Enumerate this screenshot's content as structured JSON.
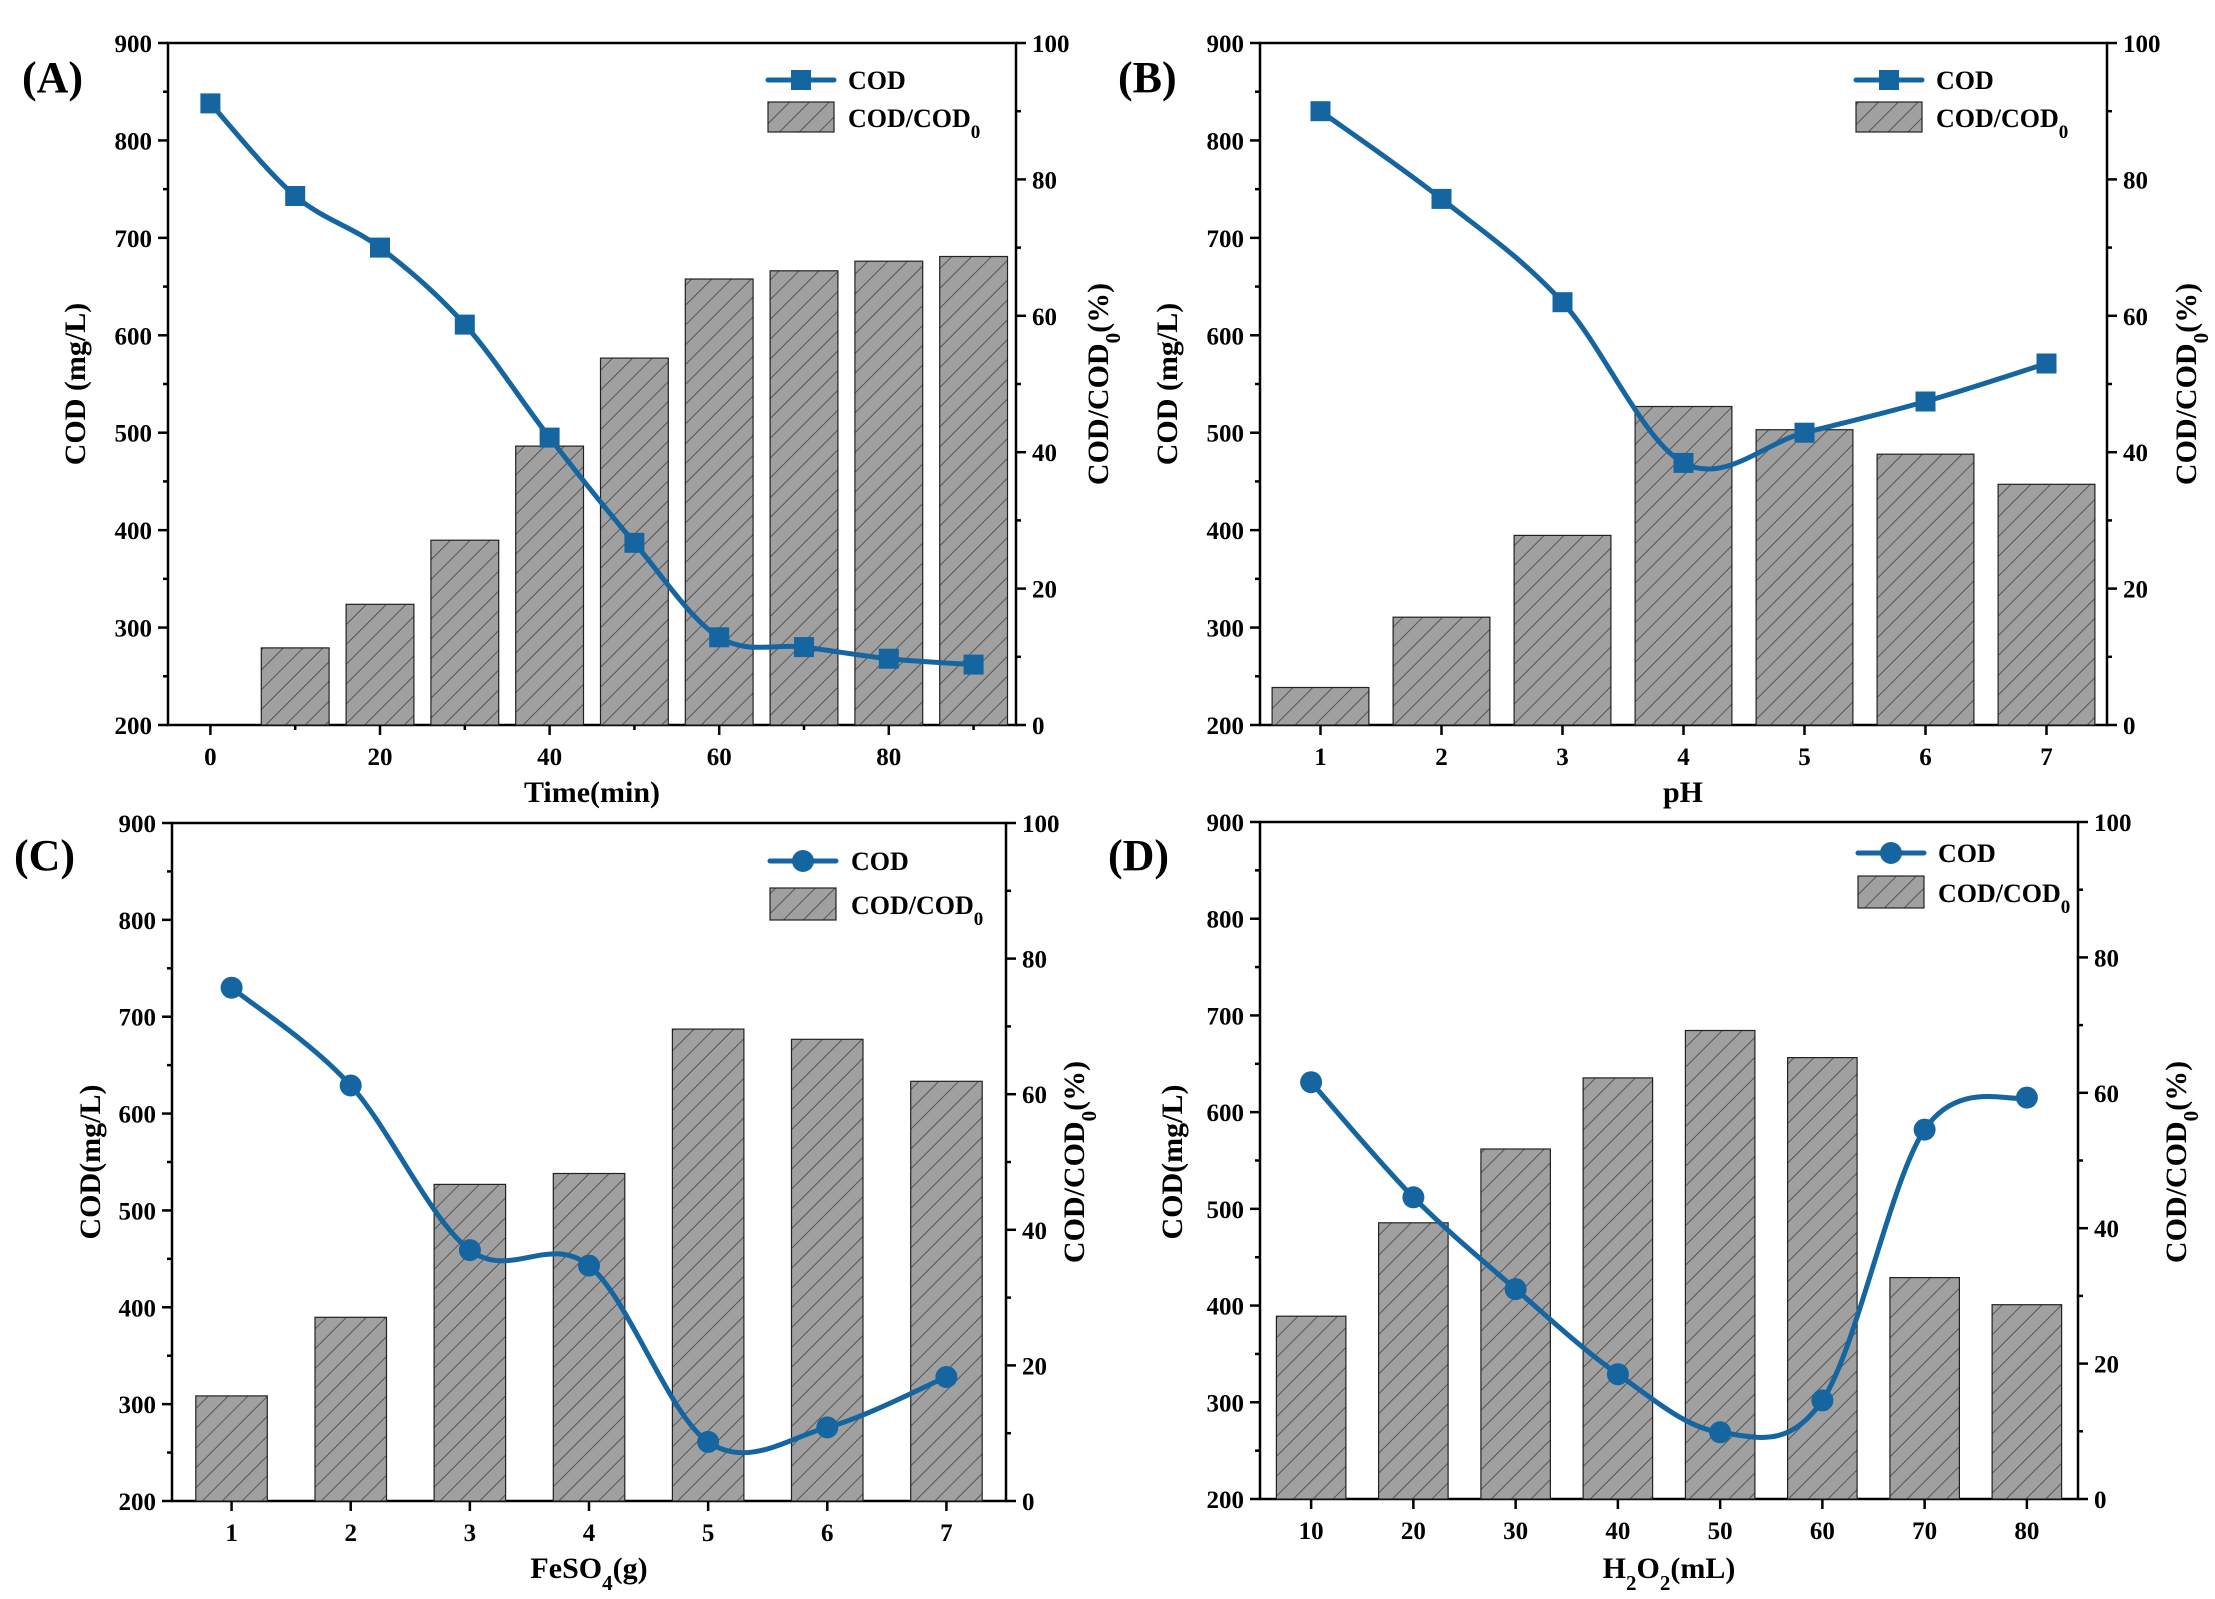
{
  "figure": {
    "colors": {
      "line": "#1565a0",
      "bar_fill": "#a0a0a0",
      "bar_hatch": "#555555"
    }
  },
  "chart_data": [
    {
      "panel": "(A)",
      "type": "bar+line",
      "xlabel": "Time(min)",
      "ylabel_left": "COD (mg/L)",
      "ylabel_right": "COD/COD0(%)",
      "ylim_left": [
        200,
        900
      ],
      "ylim_right": [
        0,
        100
      ],
      "yticks_left": [
        200,
        300,
        400,
        500,
        600,
        700,
        800,
        900
      ],
      "yticks_right": [
        0,
        20,
        40,
        60,
        80,
        100
      ],
      "x_domain": [
        -5,
        95
      ],
      "marker": "square",
      "legend": [
        "COD",
        "COD/COD0"
      ],
      "categories": [
        0,
        10,
        20,
        30,
        40,
        50,
        60,
        70,
        80,
        90
      ],
      "tick_labels": [
        "0",
        "20",
        "40",
        "60",
        "80"
      ],
      "tick_positions": [
        0,
        20,
        40,
        60,
        80
      ],
      "series": [
        {
          "name": "COD",
          "kind": "line",
          "axis": "left",
          "values": [
            838,
            743,
            690,
            611,
            495,
            387,
            290,
            280,
            268,
            262
          ]
        },
        {
          "name": "COD/COD0",
          "kind": "bar",
          "axis": "right",
          "values": [
            0,
            11.3,
            17.7,
            27.1,
            40.9,
            53.8,
            65.4,
            66.6,
            68.0,
            68.7
          ]
        }
      ]
    },
    {
      "panel": "(B)",
      "type": "bar+line",
      "xlabel": "pH",
      "ylabel_left": "COD (mg/L)",
      "ylabel_right": "COD/COD0(%)",
      "ylim_left": [
        200,
        900
      ],
      "ylim_right": [
        0,
        100
      ],
      "yticks_left": [
        200,
        300,
        400,
        500,
        600,
        700,
        800,
        900
      ],
      "yticks_right": [
        0,
        20,
        40,
        60,
        80,
        100
      ],
      "x_domain": [
        0.5,
        7.5
      ],
      "marker": "square",
      "legend": [
        "COD",
        "COD/COD0"
      ],
      "categories": [
        1,
        2,
        3,
        4,
        5,
        6,
        7
      ],
      "tick_labels": [
        "1",
        "2",
        "3",
        "4",
        "5",
        "6",
        "7"
      ],
      "tick_positions": [
        1,
        2,
        3,
        4,
        5,
        6,
        7
      ],
      "series": [
        {
          "name": "COD",
          "kind": "line",
          "axis": "left",
          "values": [
            830,
            740,
            634,
            469,
            500,
            532,
            571
          ]
        },
        {
          "name": "COD/COD0",
          "kind": "bar",
          "axis": "right",
          "values": [
            5.5,
            15.8,
            27.8,
            46.7,
            43.3,
            39.7,
            35.3
          ]
        }
      ]
    },
    {
      "panel": "(C)",
      "type": "bar+line",
      "xlabel": "FeSO4(g)",
      "ylabel_left": "COD(mg/L)",
      "ylabel_right": "COD/COD0(%)",
      "ylim_left": [
        200,
        900
      ],
      "ylim_right": [
        0,
        100
      ],
      "yticks_left": [
        200,
        300,
        400,
        500,
        600,
        700,
        800,
        900
      ],
      "yticks_right": [
        0,
        20,
        40,
        60,
        80,
        100
      ],
      "x_domain": [
        0.5,
        7.5
      ],
      "marker": "circle",
      "legend": [
        "COD",
        "COD/COD0"
      ],
      "categories": [
        1,
        2,
        3,
        4,
        5,
        6,
        7
      ],
      "tick_labels": [
        "1",
        "2",
        "3",
        "4",
        "5",
        "6",
        "7"
      ],
      "tick_positions": [
        1,
        2,
        3,
        4,
        5,
        6,
        7
      ],
      "series": [
        {
          "name": "COD",
          "kind": "line",
          "axis": "left",
          "values": [
            730,
            629,
            459,
            443,
            261,
            276,
            328
          ]
        },
        {
          "name": "COD/COD0",
          "kind": "bar",
          "axis": "right",
          "values": [
            15.5,
            27.1,
            46.7,
            48.3,
            69.6,
            68.1,
            61.9
          ]
        }
      ]
    },
    {
      "panel": "(D)",
      "type": "bar+line",
      "xlabel": "H2O2(mL)",
      "ylabel_left": "COD(mg/L)",
      "ylabel_right": "COD/COD0(%)",
      "ylim_left": [
        200,
        900
      ],
      "ylim_right": [
        0,
        100
      ],
      "yticks_left": [
        200,
        300,
        400,
        500,
        600,
        700,
        800,
        900
      ],
      "yticks_right": [
        0,
        20,
        40,
        60,
        80,
        100
      ],
      "x_domain": [
        5,
        85
      ],
      "marker": "circle",
      "legend": [
        "COD",
        "COD/COD0"
      ],
      "categories": [
        10,
        20,
        30,
        40,
        50,
        60,
        70,
        80
      ],
      "tick_labels": [
        "10",
        "20",
        "30",
        "40",
        "50",
        "60",
        "70",
        "80"
      ],
      "tick_positions": [
        10,
        20,
        30,
        40,
        50,
        60,
        70,
        80
      ],
      "series": [
        {
          "name": "COD",
          "kind": "line",
          "axis": "left",
          "values": [
            631,
            512,
            417,
            329,
            269,
            302,
            582,
            615
          ]
        },
        {
          "name": "COD/COD0",
          "kind": "bar",
          "axis": "right",
          "values": [
            27.0,
            40.8,
            51.7,
            62.2,
            69.2,
            65.2,
            32.7,
            28.7
          ]
        }
      ]
    }
  ]
}
